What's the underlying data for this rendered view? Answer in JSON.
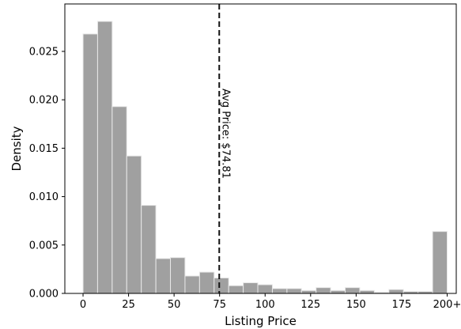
{
  "chart_data": {
    "type": "bar",
    "xlabel": "Listing Price",
    "ylabel": "Density",
    "xlim": [
      -10,
      205
    ],
    "ylim": [
      0,
      0.0299
    ],
    "bin_width": 8,
    "bins": [
      {
        "x0": 0,
        "value": 0.0268
      },
      {
        "x0": 8,
        "value": 0.0281
      },
      {
        "x0": 16,
        "value": 0.0193
      },
      {
        "x0": 24,
        "value": 0.0142
      },
      {
        "x0": 32,
        "value": 0.0091
      },
      {
        "x0": 40,
        "value": 0.0036
      },
      {
        "x0": 48,
        "value": 0.0037
      },
      {
        "x0": 56,
        "value": 0.0018
      },
      {
        "x0": 64,
        "value": 0.0022
      },
      {
        "x0": 72,
        "value": 0.0016
      },
      {
        "x0": 80,
        "value": 0.0008
      },
      {
        "x0": 88,
        "value": 0.0011
      },
      {
        "x0": 96,
        "value": 0.0009
      },
      {
        "x0": 104,
        "value": 0.0005
      },
      {
        "x0": 112,
        "value": 0.0005
      },
      {
        "x0": 120,
        "value": 0.0003
      },
      {
        "x0": 128,
        "value": 0.0006
      },
      {
        "x0": 136,
        "value": 0.0003
      },
      {
        "x0": 144,
        "value": 0.0006
      },
      {
        "x0": 152,
        "value": 0.0003
      },
      {
        "x0": 160,
        "value": 0.0001
      },
      {
        "x0": 168,
        "value": 0.0004
      },
      {
        "x0": 176,
        "value": 0.0002
      },
      {
        "x0": 184,
        "value": 0.0002
      },
      {
        "x0": 192,
        "value": 0.0064
      }
    ],
    "xticks": [
      {
        "value": 0,
        "label": "0"
      },
      {
        "value": 25,
        "label": "25"
      },
      {
        "value": 50,
        "label": "50"
      },
      {
        "value": 75,
        "label": "75"
      },
      {
        "value": 100,
        "label": "100"
      },
      {
        "value": 125,
        "label": "125"
      },
      {
        "value": 150,
        "label": "150"
      },
      {
        "value": 175,
        "label": "175"
      },
      {
        "value": 200,
        "label": "200+"
      }
    ],
    "yticks": [
      {
        "value": 0,
        "label": "0.000"
      },
      {
        "value": 0.005,
        "label": "0.005"
      },
      {
        "value": 0.01,
        "label": "0.010"
      },
      {
        "value": 0.015,
        "label": "0.015"
      },
      {
        "value": 0.02,
        "label": "0.020"
      },
      {
        "value": 0.025,
        "label": "0.025"
      }
    ],
    "reference_line": {
      "x": 74.81,
      "style": "dashed",
      "label": "Avg Price: $74.81"
    },
    "bar_color": "#a0a0a0",
    "bar_edge_color": "#e8e8e8",
    "line_color": "#111111",
    "grid": false,
    "legend": "none"
  }
}
